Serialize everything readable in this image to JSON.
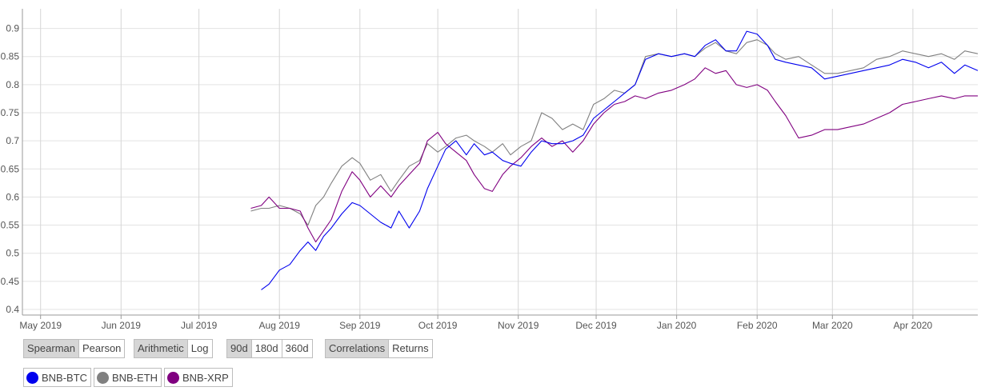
{
  "chart_data": {
    "type": "line",
    "x_ticks": [
      "May 2019",
      "Jun 2019",
      "Jul 2019",
      "Aug 2019",
      "Sep 2019",
      "Oct 2019",
      "Nov 2019",
      "Dec 2019",
      "Jan 2020",
      "Feb 2020",
      "Mar 2020",
      "Apr 2020"
    ],
    "y_ticks": [
      "0.4",
      "0.45",
      "0.5",
      "0.55",
      "0.6",
      "0.65",
      "0.7",
      "0.75",
      "0.8",
      "0.85",
      "0.9"
    ],
    "ylim": [
      0.39,
      0.935
    ],
    "xlim": [
      "2019-04-24",
      "2020-04-26"
    ],
    "grid": true,
    "series": [
      {
        "name": "BNB-ETH",
        "color": "#808080",
        "points": [
          [
            "2019-07-21",
            0.575
          ],
          [
            "2019-07-25",
            0.58
          ],
          [
            "2019-07-28",
            0.58
          ],
          [
            "2019-08-01",
            0.585
          ],
          [
            "2019-08-05",
            0.58
          ],
          [
            "2019-08-09",
            0.57
          ],
          [
            "2019-08-12",
            0.55
          ],
          [
            "2019-08-15",
            0.585
          ],
          [
            "2019-08-18",
            0.6
          ],
          [
            "2019-08-21",
            0.625
          ],
          [
            "2019-08-25",
            0.655
          ],
          [
            "2019-08-29",
            0.67
          ],
          [
            "2019-09-01",
            0.66
          ],
          [
            "2019-09-05",
            0.63
          ],
          [
            "2019-09-09",
            0.64
          ],
          [
            "2019-09-13",
            0.61
          ],
          [
            "2019-09-16",
            0.63
          ],
          [
            "2019-09-20",
            0.655
          ],
          [
            "2019-09-24",
            0.665
          ],
          [
            "2019-09-27",
            0.695
          ],
          [
            "2019-10-01",
            0.68
          ],
          [
            "2019-10-04",
            0.69
          ],
          [
            "2019-10-08",
            0.705
          ],
          [
            "2019-10-12",
            0.71
          ],
          [
            "2019-10-15",
            0.7
          ],
          [
            "2019-10-19",
            0.69
          ],
          [
            "2019-10-22",
            0.68
          ],
          [
            "2019-10-26",
            0.695
          ],
          [
            "2019-10-29",
            0.675
          ],
          [
            "2019-11-02",
            0.69
          ],
          [
            "2019-11-06",
            0.7
          ],
          [
            "2019-11-10",
            0.75
          ],
          [
            "2019-11-14",
            0.74
          ],
          [
            "2019-11-18",
            0.72
          ],
          [
            "2019-11-22",
            0.73
          ],
          [
            "2019-11-26",
            0.72
          ],
          [
            "2019-11-30",
            0.765
          ],
          [
            "2019-12-04",
            0.775
          ],
          [
            "2019-12-08",
            0.79
          ],
          [
            "2019-12-12",
            0.785
          ],
          [
            "2019-12-16",
            0.8
          ],
          [
            "2019-12-20",
            0.85
          ],
          [
            "2019-12-25",
            0.855
          ],
          [
            "2019-12-30",
            0.85
          ],
          [
            "2020-01-04",
            0.855
          ],
          [
            "2020-01-08",
            0.85
          ],
          [
            "2020-01-12",
            0.865
          ],
          [
            "2020-01-16",
            0.875
          ],
          [
            "2020-01-20",
            0.86
          ],
          [
            "2020-01-24",
            0.855
          ],
          [
            "2020-01-28",
            0.875
          ],
          [
            "2020-02-01",
            0.88
          ],
          [
            "2020-02-05",
            0.87
          ],
          [
            "2020-02-08",
            0.855
          ],
          [
            "2020-02-12",
            0.845
          ],
          [
            "2020-02-17",
            0.85
          ],
          [
            "2020-02-22",
            0.835
          ],
          [
            "2020-02-27",
            0.82
          ],
          [
            "2020-03-03",
            0.82
          ],
          [
            "2020-03-08",
            0.825
          ],
          [
            "2020-03-13",
            0.83
          ],
          [
            "2020-03-18",
            0.845
          ],
          [
            "2020-03-23",
            0.85
          ],
          [
            "2020-03-28",
            0.86
          ],
          [
            "2020-04-02",
            0.855
          ],
          [
            "2020-04-07",
            0.85
          ],
          [
            "2020-04-12",
            0.855
          ],
          [
            "2020-04-17",
            0.845
          ],
          [
            "2020-04-21",
            0.86
          ],
          [
            "2020-04-26",
            0.855
          ]
        ]
      },
      {
        "name": "BNB-XRP",
        "color": "#800080",
        "points": [
          [
            "2019-07-21",
            0.58
          ],
          [
            "2019-07-25",
            0.585
          ],
          [
            "2019-07-28",
            0.6
          ],
          [
            "2019-08-01",
            0.58
          ],
          [
            "2019-08-05",
            0.58
          ],
          [
            "2019-08-09",
            0.575
          ],
          [
            "2019-08-12",
            0.545
          ],
          [
            "2019-08-15",
            0.52
          ],
          [
            "2019-08-18",
            0.54
          ],
          [
            "2019-08-21",
            0.56
          ],
          [
            "2019-08-25",
            0.61
          ],
          [
            "2019-08-29",
            0.645
          ],
          [
            "2019-09-01",
            0.63
          ],
          [
            "2019-09-05",
            0.6
          ],
          [
            "2019-09-09",
            0.62
          ],
          [
            "2019-09-13",
            0.6
          ],
          [
            "2019-09-16",
            0.62
          ],
          [
            "2019-09-20",
            0.64
          ],
          [
            "2019-09-24",
            0.66
          ],
          [
            "2019-09-27",
            0.7
          ],
          [
            "2019-10-01",
            0.715
          ],
          [
            "2019-10-04",
            0.695
          ],
          [
            "2019-10-08",
            0.68
          ],
          [
            "2019-10-12",
            0.665
          ],
          [
            "2019-10-15",
            0.64
          ],
          [
            "2019-10-19",
            0.615
          ],
          [
            "2019-10-22",
            0.61
          ],
          [
            "2019-10-26",
            0.64
          ],
          [
            "2019-10-29",
            0.655
          ],
          [
            "2019-11-02",
            0.67
          ],
          [
            "2019-11-06",
            0.69
          ],
          [
            "2019-11-10",
            0.705
          ],
          [
            "2019-11-14",
            0.69
          ],
          [
            "2019-11-18",
            0.7
          ],
          [
            "2019-11-22",
            0.68
          ],
          [
            "2019-11-26",
            0.7
          ],
          [
            "2019-11-30",
            0.73
          ],
          [
            "2019-12-04",
            0.75
          ],
          [
            "2019-12-08",
            0.765
          ],
          [
            "2019-12-12",
            0.77
          ],
          [
            "2019-12-16",
            0.78
          ],
          [
            "2019-12-20",
            0.775
          ],
          [
            "2019-12-25",
            0.785
          ],
          [
            "2019-12-30",
            0.79
          ],
          [
            "2020-01-04",
            0.8
          ],
          [
            "2020-01-08",
            0.81
          ],
          [
            "2020-01-12",
            0.83
          ],
          [
            "2020-01-16",
            0.82
          ],
          [
            "2020-01-20",
            0.825
          ],
          [
            "2020-01-24",
            0.8
          ],
          [
            "2020-01-28",
            0.795
          ],
          [
            "2020-02-01",
            0.8
          ],
          [
            "2020-02-05",
            0.79
          ],
          [
            "2020-02-08",
            0.77
          ],
          [
            "2020-02-12",
            0.745
          ],
          [
            "2020-02-17",
            0.705
          ],
          [
            "2020-02-22",
            0.71
          ],
          [
            "2020-02-27",
            0.72
          ],
          [
            "2020-03-03",
            0.72
          ],
          [
            "2020-03-08",
            0.725
          ],
          [
            "2020-03-13",
            0.73
          ],
          [
            "2020-03-18",
            0.74
          ],
          [
            "2020-03-23",
            0.75
          ],
          [
            "2020-03-28",
            0.765
          ],
          [
            "2020-04-02",
            0.77
          ],
          [
            "2020-04-07",
            0.775
          ],
          [
            "2020-04-12",
            0.78
          ],
          [
            "2020-04-17",
            0.775
          ],
          [
            "2020-04-21",
            0.78
          ],
          [
            "2020-04-26",
            0.78
          ]
        ]
      },
      {
        "name": "BNB-BTC",
        "color": "#0000ee",
        "points": [
          [
            "2019-07-25",
            0.435
          ],
          [
            "2019-07-28",
            0.445
          ],
          [
            "2019-08-01",
            0.47
          ],
          [
            "2019-08-05",
            0.48
          ],
          [
            "2019-08-09",
            0.505
          ],
          [
            "2019-08-12",
            0.52
          ],
          [
            "2019-08-15",
            0.505
          ],
          [
            "2019-08-18",
            0.53
          ],
          [
            "2019-08-21",
            0.545
          ],
          [
            "2019-08-25",
            0.57
          ],
          [
            "2019-08-29",
            0.59
          ],
          [
            "2019-09-01",
            0.585
          ],
          [
            "2019-09-05",
            0.57
          ],
          [
            "2019-09-09",
            0.555
          ],
          [
            "2019-09-13",
            0.545
          ],
          [
            "2019-09-16",
            0.575
          ],
          [
            "2019-09-20",
            0.545
          ],
          [
            "2019-09-24",
            0.575
          ],
          [
            "2019-09-27",
            0.615
          ],
          [
            "2019-10-01",
            0.655
          ],
          [
            "2019-10-04",
            0.685
          ],
          [
            "2019-10-08",
            0.7
          ],
          [
            "2019-10-12",
            0.675
          ],
          [
            "2019-10-15",
            0.695
          ],
          [
            "2019-10-19",
            0.675
          ],
          [
            "2019-10-22",
            0.68
          ],
          [
            "2019-10-26",
            0.665
          ],
          [
            "2019-10-29",
            0.66
          ],
          [
            "2019-11-02",
            0.655
          ],
          [
            "2019-11-06",
            0.68
          ],
          [
            "2019-11-10",
            0.7
          ],
          [
            "2019-11-14",
            0.695
          ],
          [
            "2019-11-18",
            0.695
          ],
          [
            "2019-11-22",
            0.7
          ],
          [
            "2019-11-26",
            0.71
          ],
          [
            "2019-11-30",
            0.74
          ],
          [
            "2019-12-04",
            0.755
          ],
          [
            "2019-12-08",
            0.77
          ],
          [
            "2019-12-12",
            0.785
          ],
          [
            "2019-12-16",
            0.8
          ],
          [
            "2019-12-20",
            0.845
          ],
          [
            "2019-12-25",
            0.855
          ],
          [
            "2019-12-30",
            0.85
          ],
          [
            "2020-01-04",
            0.855
          ],
          [
            "2020-01-08",
            0.85
          ],
          [
            "2020-01-12",
            0.87
          ],
          [
            "2020-01-16",
            0.88
          ],
          [
            "2020-01-20",
            0.86
          ],
          [
            "2020-01-24",
            0.86
          ],
          [
            "2020-01-28",
            0.895
          ],
          [
            "2020-02-01",
            0.89
          ],
          [
            "2020-02-05",
            0.87
          ],
          [
            "2020-02-08",
            0.845
          ],
          [
            "2020-02-12",
            0.84
          ],
          [
            "2020-02-17",
            0.835
          ],
          [
            "2020-02-22",
            0.83
          ],
          [
            "2020-02-27",
            0.81
          ],
          [
            "2020-03-03",
            0.815
          ],
          [
            "2020-03-08",
            0.82
          ],
          [
            "2020-03-13",
            0.825
          ],
          [
            "2020-03-18",
            0.83
          ],
          [
            "2020-03-23",
            0.835
          ],
          [
            "2020-03-28",
            0.845
          ],
          [
            "2020-04-02",
            0.84
          ],
          [
            "2020-04-07",
            0.83
          ],
          [
            "2020-04-12",
            0.84
          ],
          [
            "2020-04-17",
            0.82
          ],
          [
            "2020-04-21",
            0.835
          ],
          [
            "2020-04-26",
            0.825
          ]
        ]
      }
    ]
  },
  "controls": {
    "correlation_method": [
      {
        "label": "Spearman",
        "active": true
      },
      {
        "label": "Pearson",
        "active": false
      }
    ],
    "scale": [
      {
        "label": "Arithmetic",
        "active": true
      },
      {
        "label": "Log",
        "active": false
      }
    ],
    "window": [
      {
        "label": "90d",
        "active": true
      },
      {
        "label": "180d",
        "active": false
      },
      {
        "label": "360d",
        "active": false
      }
    ],
    "view": [
      {
        "label": "Correlations",
        "active": true
      },
      {
        "label": "Returns",
        "active": false
      }
    ]
  },
  "legend": [
    {
      "label": "BNB-BTC",
      "color": "#0000ee"
    },
    {
      "label": "BNB-ETH",
      "color": "#808080"
    },
    {
      "label": "BNB-XRP",
      "color": "#800080"
    }
  ]
}
